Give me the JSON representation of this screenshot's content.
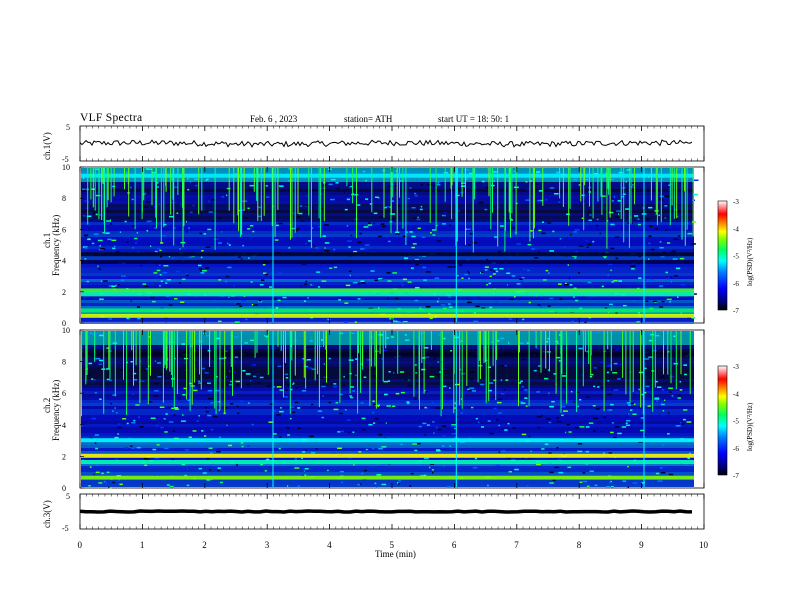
{
  "header": {
    "title": "VLF  Spectra",
    "date": "Feb. 6  , 2023",
    "station": "station= ATH",
    "start_ut": "start  UT  =    18: 50: 1"
  },
  "colors": {
    "spectrogram_base": "#0a1a7a",
    "waveform": "#000000",
    "colorbar": [
      "#000000",
      "#00007f",
      "#0000ff",
      "#0080ff",
      "#00ffff",
      "#00ff80",
      "#80ff00",
      "#ffff00",
      "#ff8000",
      "#ff0000",
      "#ffffff"
    ]
  },
  "chart_data": [
    {
      "type": "line",
      "name": "channel-1-waveform",
      "ylabel": "ch.1(V)",
      "ylim": [
        -5,
        5
      ],
      "yticks": [
        "5",
        "-5"
      ],
      "xlim": [
        0,
        10
      ],
      "description_values": {
        "baseline_V": 0.0,
        "noise_amplitude_V": 0.8
      }
    },
    {
      "type": "heatmap",
      "name": "channel-1-spectrogram",
      "ylabel": "ch.1\nFrequency  (kHz)",
      "ylim": [
        0,
        10
      ],
      "yticks": [
        "0",
        "2",
        "4",
        "6",
        "8",
        "10"
      ],
      "xlim": [
        0,
        9.8
      ],
      "colorbar": {
        "label": "log(PSD)(V²/Hz)",
        "range": [
          -7,
          -3
        ],
        "ticks": [
          "-3",
          "-4",
          "-5",
          "-6",
          "-7"
        ]
      },
      "bands_kHz": [
        {
          "f": 2.05,
          "level": -4.6
        },
        {
          "f": 1.8,
          "level": -5.0
        },
        {
          "f": 0.75,
          "level": -4.8
        },
        {
          "f": 0.4,
          "level": -4.2
        },
        {
          "f": 4.4,
          "level": -6.9
        },
        {
          "f": 3.9,
          "level": -6.8
        },
        {
          "f": 9.5,
          "level": -5.3
        }
      ]
    },
    {
      "type": "heatmap",
      "name": "channel-2-spectrogram",
      "ylabel": "ch.2\nFrequency  (kHz)",
      "ylim": [
        0,
        10
      ],
      "yticks": [
        "0",
        "2",
        "4",
        "6",
        "8",
        "10"
      ],
      "xlim": [
        0,
        9.8
      ],
      "colorbar": {
        "label": "log(PSD)(V²/Hz)",
        "range": [
          -7,
          -3
        ],
        "ticks": [
          "-3",
          "-4",
          "-5",
          "-6",
          "-7"
        ]
      },
      "bands_kHz": [
        {
          "f": 2.0,
          "level": -4.1
        },
        {
          "f": 1.6,
          "level": -5.0
        },
        {
          "f": 0.6,
          "level": -4.4
        },
        {
          "f": 3.0,
          "level": -5.2
        },
        {
          "f": 8.5,
          "level": -6.9
        }
      ]
    },
    {
      "type": "line",
      "name": "channel-3-waveform",
      "ylabel": "ch.3(V)",
      "ylim": [
        -5,
        5
      ],
      "yticks": [
        "5",
        "-5"
      ],
      "xlim": [
        0,
        10
      ],
      "description_values": {
        "baseline_V": 0.0,
        "noise_amplitude_V": 0.15
      }
    }
  ],
  "x_axis": {
    "label": "Time  (min)",
    "ticks": [
      "0",
      "1",
      "2",
      "3",
      "4",
      "5",
      "6",
      "7",
      "8",
      "9",
      "10"
    ]
  }
}
